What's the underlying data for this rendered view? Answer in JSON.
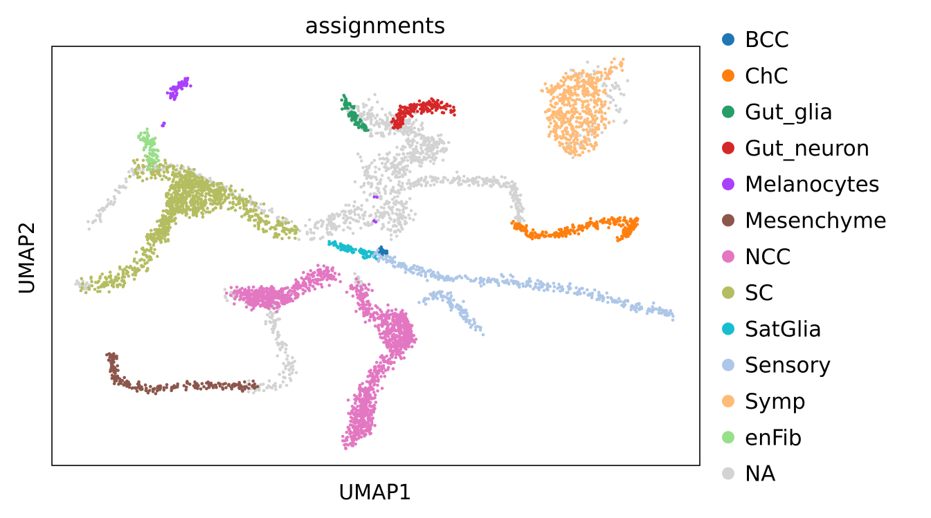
{
  "chart_data": {
    "type": "scatter",
    "title": "assignments",
    "xlabel": "UMAP1",
    "ylabel": "UMAP2",
    "xticks": false,
    "yticks": false,
    "grid": false,
    "xlim": [
      0,
      100
    ],
    "ylim": [
      0,
      100
    ],
    "legend_position": "outside-right",
    "legend_title": "",
    "categories": [
      {
        "name": "BCC",
        "color": "#1f77b4"
      },
      {
        "name": "ChC",
        "color": "#ff7f0e"
      },
      {
        "name": "Gut_glia",
        "color": "#279e68"
      },
      {
        "name": "Gut_neuron",
        "color": "#d62728"
      },
      {
        "name": "Melanocytes",
        "color": "#aa40fc"
      },
      {
        "name": "Mesenchyme",
        "color": "#8c564b"
      },
      {
        "name": "NCC",
        "color": "#e377c2"
      },
      {
        "name": "SC",
        "color": "#b5bd61"
      },
      {
        "name": "SatGlia",
        "color": "#17becf"
      },
      {
        "name": "Sensory",
        "color": "#aec7e8"
      },
      {
        "name": "Symp",
        "color": "#ffbb78"
      },
      {
        "name": "enFib",
        "color": "#98df8a"
      },
      {
        "name": "NA",
        "color": "#d3d3d3"
      }
    ],
    "clusters": [
      {
        "category": "NA",
        "kind": "path",
        "points": [
          [
            6,
            57
          ],
          [
            13,
            71
          ],
          [
            20,
            71
          ],
          [
            28,
            65
          ],
          [
            35,
            59
          ],
          [
            40,
            55
          ]
        ],
        "spread": 0.5,
        "count": 160
      },
      {
        "category": "NA",
        "kind": "path",
        "points": [
          [
            40,
            55
          ],
          [
            46,
            60
          ],
          [
            50,
            59
          ],
          [
            54,
            57
          ],
          [
            53,
            63
          ],
          [
            49,
            66
          ],
          [
            49,
            72
          ]
        ],
        "spread": 1.6,
        "count": 320
      },
      {
        "category": "NA",
        "kind": "path",
        "points": [
          [
            48,
            84
          ],
          [
            51,
            81
          ],
          [
            54,
            82
          ],
          [
            57,
            78
          ],
          [
            60,
            76
          ],
          [
            56,
            74
          ],
          [
            52,
            72
          ],
          [
            54,
            69
          ]
        ],
        "spread": 1.4,
        "count": 420
      },
      {
        "category": "NA",
        "kind": "path",
        "points": [
          [
            53,
            66
          ],
          [
            58,
            68
          ],
          [
            66,
            68
          ],
          [
            71,
            67
          ],
          [
            72,
            62
          ],
          [
            72,
            58
          ]
        ],
        "spread": 0.6,
        "count": 220
      },
      {
        "category": "NA",
        "kind": "path",
        "points": [
          [
            27,
            41
          ],
          [
            34,
            40
          ],
          [
            34,
            35
          ],
          [
            36,
            27
          ],
          [
            37,
            22
          ],
          [
            35,
            19
          ],
          [
            30,
            18
          ]
        ],
        "spread": 0.8,
        "count": 170
      },
      {
        "category": "NA",
        "kind": "path",
        "points": [
          [
            47,
            82
          ],
          [
            46,
            85
          ]
        ],
        "spread": 0.6,
        "count": 40
      },
      {
        "category": "NA",
        "kind": "path",
        "points": [
          [
            47,
            45
          ],
          [
            48,
            40
          ]
        ],
        "spread": 0.6,
        "count": 30
      },
      {
        "category": "NA",
        "kind": "path",
        "points": [
          [
            4,
            43
          ],
          [
            6,
            43
          ]
        ],
        "spread": 0.5,
        "count": 20
      },
      {
        "category": "NA",
        "kind": "path",
        "points": [
          [
            81,
            94
          ],
          [
            87,
            92
          ],
          [
            87,
            83
          ],
          [
            80,
            77
          ]
        ],
        "spread": 1.5,
        "count": 70
      },
      {
        "category": "SC",
        "kind": "path",
        "points": [
          [
            5,
            43
          ],
          [
            10,
            44
          ],
          [
            14,
            48
          ],
          [
            15,
            52
          ],
          [
            19,
            62
          ],
          [
            20,
            68
          ],
          [
            25,
            66
          ],
          [
            30,
            62
          ],
          [
            33,
            57
          ],
          [
            38,
            56
          ]
        ],
        "spread": 1.2,
        "count": 520
      },
      {
        "category": "SC",
        "kind": "blob",
        "center": [
          22,
          64
        ],
        "rx": 4.5,
        "ry": 4.5,
        "count": 380
      },
      {
        "category": "SC",
        "kind": "path",
        "points": [
          [
            13,
            71
          ],
          [
            18,
            70
          ],
          [
            22,
            68
          ]
        ],
        "spread": 1.2,
        "count": 140
      },
      {
        "category": "SC",
        "kind": "path",
        "points": [
          [
            17,
            55
          ],
          [
            18,
            60
          ]
        ],
        "spread": 0.8,
        "count": 70
      },
      {
        "category": "enFib",
        "kind": "path",
        "points": [
          [
            14,
            79
          ],
          [
            15,
            77
          ],
          [
            16,
            74
          ],
          [
            15,
            72
          ]
        ],
        "spread": 0.9,
        "count": 95
      },
      {
        "category": "Melanocytes",
        "kind": "path",
        "points": [
          [
            18,
            88
          ],
          [
            21,
            92
          ]
        ],
        "spread": 0.6,
        "count": 65
      },
      {
        "category": "Melanocytes",
        "kind": "path",
        "points": [
          [
            17,
            81
          ],
          [
            17.5,
            81.5
          ]
        ],
        "spread": 0.2,
        "count": 4
      },
      {
        "category": "Melanocytes",
        "kind": "path",
        "points": [
          [
            50,
            64
          ],
          [
            50,
            64.5
          ]
        ],
        "spread": 0.2,
        "count": 2
      },
      {
        "category": "Melanocytes",
        "kind": "path",
        "points": [
          [
            50,
            58
          ],
          [
            50,
            58.5
          ]
        ],
        "spread": 0.2,
        "count": 2
      },
      {
        "category": "Gut_glia",
        "kind": "path",
        "points": [
          [
            45,
            88
          ],
          [
            47,
            82
          ],
          [
            49,
            80
          ]
        ],
        "spread": 0.55,
        "count": 85
      },
      {
        "category": "Gut_neuron",
        "kind": "path",
        "points": [
          [
            53,
            81
          ],
          [
            54,
            84
          ],
          [
            58,
            86
          ],
          [
            62,
            85
          ]
        ],
        "spread": 0.75,
        "count": 190
      },
      {
        "category": "Symp",
        "kind": "blob",
        "center": [
          81,
          84
        ],
        "rx": 4.6,
        "ry": 10,
        "count": 460
      },
      {
        "category": "Symp",
        "kind": "path",
        "points": [
          [
            76,
            90
          ],
          [
            80,
            89
          ],
          [
            83,
            91
          ],
          [
            88,
            96
          ]
        ],
        "spread": 0.8,
        "count": 90
      },
      {
        "category": "ChC",
        "kind": "path",
        "points": [
          [
            71,
            58
          ],
          [
            74,
            55
          ],
          [
            78,
            55
          ],
          [
            82,
            57
          ],
          [
            86,
            58
          ],
          [
            90,
            58
          ],
          [
            88,
            54
          ]
        ],
        "spread": 0.55,
        "count": 280
      },
      {
        "category": "BCC",
        "kind": "path",
        "points": [
          [
            50.5,
            51.5
          ],
          [
            51.5,
            50.5
          ]
        ],
        "spread": 0.4,
        "count": 32
      },
      {
        "category": "SatGlia",
        "kind": "path",
        "points": [
          [
            43,
            53
          ],
          [
            47,
            51
          ],
          [
            50,
            50
          ]
        ],
        "spread": 0.45,
        "count": 90
      },
      {
        "category": "Sensory",
        "kind": "path",
        "points": [
          [
            50,
            50
          ],
          [
            55,
            47
          ],
          [
            60,
            45
          ],
          [
            70,
            44
          ],
          [
            80,
            42
          ],
          [
            90,
            38
          ],
          [
            96,
            36
          ]
        ],
        "spread": 0.6,
        "count": 360
      },
      {
        "category": "Sensory",
        "kind": "path",
        "points": [
          [
            57,
            39
          ],
          [
            60,
            41
          ],
          [
            63,
            37
          ],
          [
            66,
            32
          ]
        ],
        "spread": 0.6,
        "count": 110
      },
      {
        "category": "NCC",
        "kind": "path",
        "points": [
          [
            28,
            41
          ],
          [
            33,
            40
          ],
          [
            37,
            41
          ],
          [
            42,
            46
          ],
          [
            44,
            45
          ]
        ],
        "spread": 1.0,
        "count": 300
      },
      {
        "category": "NCC",
        "kind": "blob",
        "center": [
          33,
          40
        ],
        "rx": 3.5,
        "ry": 2.5,
        "count": 200
      },
      {
        "category": "NCC",
        "kind": "path",
        "points": [
          [
            47,
            43
          ],
          [
            49,
            36
          ],
          [
            54,
            35
          ],
          [
            55,
            30
          ],
          [
            50,
            22
          ],
          [
            47,
            9
          ],
          [
            46,
            5
          ]
        ],
        "spread": 1.0,
        "count": 560
      },
      {
        "category": "NCC",
        "kind": "blob",
        "center": [
          53,
          32
        ],
        "rx": 2.5,
        "ry": 5,
        "count": 240
      },
      {
        "category": "NCC",
        "kind": "blob",
        "center": [
          48,
          13
        ],
        "rx": 1.8,
        "ry": 6,
        "count": 180
      },
      {
        "category": "Mesenchyme",
        "kind": "path",
        "points": [
          [
            9,
            27
          ],
          [
            10,
            20
          ],
          [
            15,
            18
          ],
          [
            20,
            19
          ],
          [
            26,
            19
          ],
          [
            32,
            19
          ]
        ],
        "spread": 0.5,
        "count": 220
      }
    ]
  }
}
